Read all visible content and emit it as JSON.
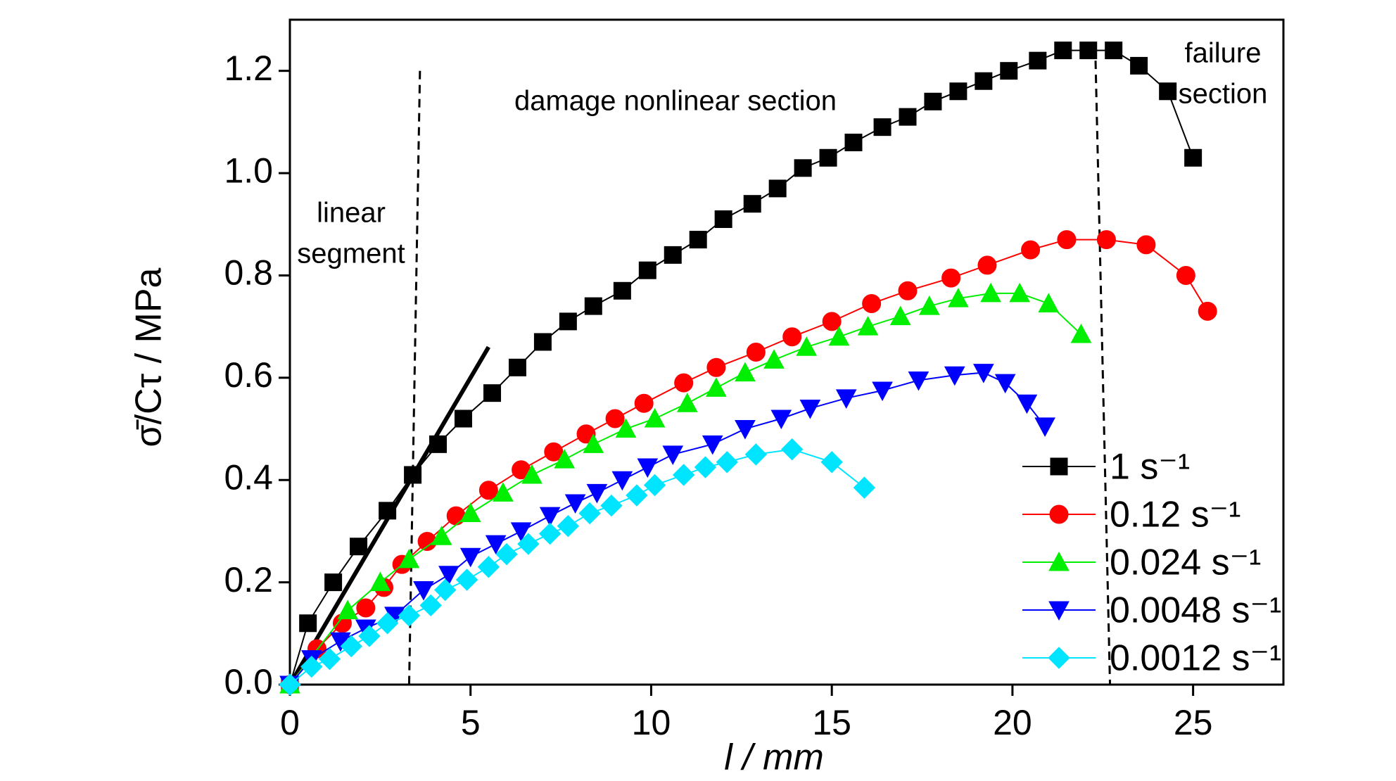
{
  "chart_data": {
    "type": "line",
    "xlabel": "l / mm",
    "ylabel": "σ̄/Cτ / MPa",
    "xlim": [
      0,
      27.5
    ],
    "ylim": [
      0,
      1.3
    ],
    "xticks": [
      0,
      5,
      10,
      15,
      20,
      25
    ],
    "yticks": [
      {
        "value": 0,
        "label": "0.0"
      },
      0.2,
      0.4,
      0.6,
      0.8,
      {
        "value": 1,
        "label": "1.0"
      },
      1.2
    ],
    "legend": "lower right",
    "annotations": [
      [
        "linear",
        "segment"
      ],
      [
        "damage nonlinear section"
      ],
      [
        "failure",
        "section"
      ]
    ],
    "reference_lines": [
      {
        "style": "solid",
        "color": "#000000",
        "x": [
          0,
          5.5
        ],
        "y": [
          0,
          0.66
        ]
      },
      {
        "style": "dashed",
        "color": "#000000",
        "x": [
          3.6,
          3.3
        ],
        "y": [
          1.2,
          0
        ]
      },
      {
        "style": "dashed",
        "color": "#000000",
        "x": [
          22.3,
          22.7
        ],
        "y": [
          1.22,
          0
        ]
      }
    ],
    "series": [
      {
        "name": "1 s⁻¹",
        "color": "#000000",
        "marker": "square",
        "x": [
          0,
          0.5,
          1.2,
          1.9,
          2.7,
          3.4,
          4.1,
          4.8,
          5.6,
          6.3,
          7.0,
          7.7,
          8.4,
          9.2,
          9.9,
          10.6,
          11.3,
          12.0,
          12.8,
          13.5,
          14.2,
          14.9,
          15.6,
          16.4,
          17.1,
          17.8,
          18.5,
          19.2,
          19.9,
          20.7,
          21.4,
          22.1,
          22.8,
          23.5,
          24.3,
          25.0
        ],
        "values": [
          0,
          0.12,
          0.2,
          0.27,
          0.34,
          0.41,
          0.47,
          0.52,
          0.57,
          0.62,
          0.67,
          0.71,
          0.74,
          0.77,
          0.81,
          0.84,
          0.87,
          0.91,
          0.94,
          0.97,
          1.01,
          1.03,
          1.06,
          1.09,
          1.11,
          1.14,
          1.16,
          1.18,
          1.2,
          1.22,
          1.24,
          1.24,
          1.24,
          1.21,
          1.16,
          1.03
        ]
      },
      {
        "name": "0.12 s⁻¹",
        "color": "#ff0000",
        "marker": "circle",
        "x": [
          0,
          0.75,
          1.45,
          2.1,
          2.6,
          3.1,
          3.8,
          4.6,
          5.5,
          6.4,
          7.3,
          8.2,
          9.0,
          9.8,
          10.9,
          11.8,
          12.9,
          13.9,
          15.0,
          16.1,
          17.1,
          18.3,
          19.3,
          20.5,
          21.5,
          22.6,
          23.7,
          24.8,
          25.4
        ],
        "values": [
          0,
          0.07,
          0.12,
          0.15,
          0.19,
          0.235,
          0.28,
          0.33,
          0.38,
          0.42,
          0.455,
          0.49,
          0.52,
          0.55,
          0.59,
          0.62,
          0.65,
          0.68,
          0.71,
          0.745,
          0.77,
          0.795,
          0.82,
          0.85,
          0.87,
          0.87,
          0.86,
          0.8,
          0.73
        ]
      },
      {
        "name": "0.024 s⁻¹",
        "color": "#00ee00",
        "marker": "triangle-up",
        "x": [
          0,
          1.6,
          2.5,
          3.3,
          4.2,
          5.0,
          5.9,
          6.7,
          7.6,
          8.4,
          9.3,
          10.1,
          11.0,
          11.8,
          12.6,
          13.4,
          14.3,
          15.2,
          16.0,
          16.9,
          17.7,
          18.5,
          19.4,
          20.2,
          21.0,
          21.9
        ],
        "values": [
          0,
          0.145,
          0.2,
          0.245,
          0.29,
          0.335,
          0.375,
          0.41,
          0.44,
          0.47,
          0.5,
          0.52,
          0.55,
          0.58,
          0.61,
          0.635,
          0.66,
          0.68,
          0.7,
          0.72,
          0.74,
          0.755,
          0.765,
          0.765,
          0.745,
          0.685
        ]
      },
      {
        "name": "0.0048 s⁻¹",
        "color": "#0000ff",
        "marker": "triangle-down",
        "x": [
          0,
          0.6,
          1.4,
          2.1,
          2.9,
          3.7,
          4.4,
          5.0,
          5.7,
          6.4,
          7.2,
          7.9,
          8.5,
          9.2,
          9.9,
          10.6,
          11.7,
          12.6,
          13.6,
          14.4,
          15.4,
          16.4,
          17.4,
          18.4,
          19.2,
          19.8,
          20.4,
          20.9
        ],
        "values": [
          0,
          0.05,
          0.085,
          0.11,
          0.135,
          0.185,
          0.215,
          0.25,
          0.275,
          0.3,
          0.33,
          0.355,
          0.375,
          0.4,
          0.425,
          0.45,
          0.47,
          0.5,
          0.52,
          0.54,
          0.56,
          0.575,
          0.595,
          0.605,
          0.61,
          0.59,
          0.55,
          0.505
        ]
      },
      {
        "name": "0.0012 s⁻¹",
        "color": "#00e5ff",
        "marker": "diamond",
        "x": [
          0,
          0.6,
          1.1,
          1.7,
          2.2,
          2.7,
          3.3,
          3.9,
          4.3,
          4.9,
          5.5,
          6.0,
          6.6,
          7.2,
          7.7,
          8.3,
          8.9,
          9.6,
          10.1,
          10.9,
          11.5,
          12.1,
          12.9,
          13.9,
          15.0,
          15.9
        ],
        "values": [
          0,
          0.035,
          0.05,
          0.075,
          0.095,
          0.12,
          0.135,
          0.155,
          0.185,
          0.205,
          0.23,
          0.255,
          0.275,
          0.295,
          0.31,
          0.335,
          0.35,
          0.37,
          0.39,
          0.41,
          0.425,
          0.435,
          0.45,
          0.46,
          0.435,
          0.385
        ]
      }
    ]
  }
}
